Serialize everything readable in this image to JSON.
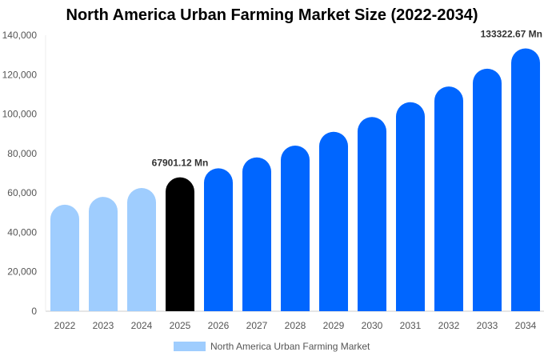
{
  "chart_data": {
    "type": "bar",
    "title": "North America Urban Farming Market Size (2022-2034)",
    "categories": [
      "2022",
      "2023",
      "2024",
      "2025",
      "2026",
      "2027",
      "2028",
      "2029",
      "2030",
      "2031",
      "2032",
      "2033",
      "2034"
    ],
    "series": [
      {
        "name": "North America Urban Farming Market",
        "values": [
          54000,
          58000,
          62500,
          67901.12,
          72500,
          78000,
          84000,
          91000,
          98500,
          106000,
          114000,
          123000,
          133322.67
        ]
      }
    ],
    "data_labels": [
      {
        "category": "2025",
        "text": "67901.12 Mn"
      },
      {
        "category": "2034",
        "text": "133322.67 Mn"
      }
    ],
    "ylim": [
      0,
      140000
    ],
    "yticks": [
      0,
      20000,
      40000,
      60000,
      80000,
      100000,
      120000,
      140000
    ],
    "ytick_labels": [
      "0",
      "20,000",
      "40,000",
      "60,000",
      "80,000",
      "100,000",
      "120,000",
      "140,000"
    ],
    "xlabel": "",
    "ylabel": "",
    "grid": false,
    "legend_position": "bottom",
    "colors": {
      "historical": "#9fcdfe",
      "current": "#000000",
      "forecast": "#0066ff",
      "axis": "#cccccc"
    },
    "category_color_groups": [
      "historical",
      "historical",
      "historical",
      "current",
      "forecast",
      "forecast",
      "forecast",
      "forecast",
      "forecast",
      "forecast",
      "forecast",
      "forecast",
      "forecast"
    ]
  }
}
